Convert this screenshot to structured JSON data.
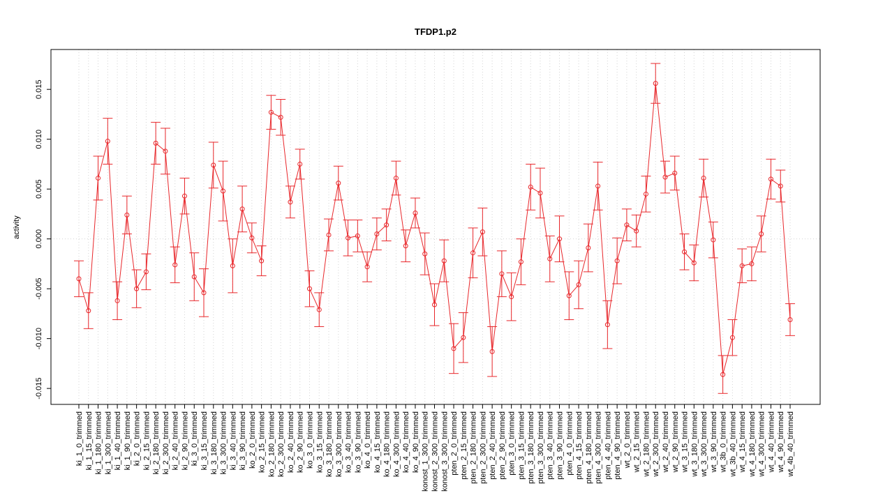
{
  "chart_data": {
    "type": "line",
    "title": "TFDP1.p2",
    "y_label": "activity",
    "categories": [
      "ki_1_0_trimmed",
      "ki_1_15_trimmed",
      "ki_1_180_trimmed",
      "ki_1_300_trimmed",
      "ki_1_40_trimmed",
      "ki_1_90_trimmed",
      "ki_2_0_trimmed",
      "ki_2_15_trimmed",
      "ki_2_180_trimmed",
      "ki_2_300_trimmed",
      "ki_2_40_trimmed",
      "ki_2_90_trimmed",
      "ki_3_0_trimmed",
      "ki_3_15_trimmed",
      "ki_3_180_trimmed",
      "ki_3_300_trimmed",
      "ki_3_40_trimmed",
      "ki_3_90_trimmed",
      "ko_2_0_trimmed",
      "ko_2_15_trimmed",
      "ko_2_180_trimmed",
      "ko_2_300_trimmed",
      "ko_2_40_trimmed",
      "ko_2_90_trimmed",
      "ko_3_0_trimmed",
      "ko_3_15_trimmed",
      "ko_3_180_trimmed",
      "ko_3_300_trimmed",
      "ko_3_40_trimmed",
      "ko_3_90_trimmed",
      "ko_4_0_trimmed",
      "ko_4_15_trimmed",
      "ko_4_180_trimmed",
      "ko_4_300_trimmed",
      "ko_4_40_trimmed",
      "ko_4_90_trimmed",
      "konost_1_300_trimmed",
      "konost_2_300_trimmed",
      "konost_3_300_trimmed",
      "pten_2_0_trimmed",
      "pten_2_15_trimmed",
      "pten_2_180_trimmed",
      "pten_2_300_trimmed",
      "pten_2_40_trimmed",
      "pten_2_90_trimmed",
      "pten_3_0_trimmed",
      "pten_3_15_trimmed",
      "pten_3_180_trimmed",
      "pten_3_300_trimmed",
      "pten_3_40_trimmed",
      "pten_3_90_trimmed",
      "pten_4_0_trimmed",
      "pten_4_15_trimmed",
      "pten_4_180_trimmed",
      "pten_4_300_trimmed",
      "pten_4_40_trimmed",
      "pten_4_90_trimmed",
      "wt_2_0_trimmed",
      "wt_2_15_trimmed",
      "wt_2_180_trimmed",
      "wt_2_300_trimmed",
      "wt_2_40_trimmed",
      "wt_2_90_trimmed",
      "wt_3_15_trimmed",
      "wt_3_180_trimmed",
      "wt_3_300_trimmed",
      "wt_3_90_trimmed",
      "wt_3b_0_trimmed",
      "wt_3b_40_trimmed",
      "wt_4_15_trimmed",
      "wt_4_180_trimmed",
      "wt_4_300_trimmed",
      "wt_4_40_trimmed",
      "wt_4_90_trimmed",
      "wt_4b_40_trimmed"
    ],
    "series": [
      {
        "color": "#e8262a",
        "values": [
          -0.004,
          -0.0072,
          0.0061,
          0.0098,
          -0.0062,
          0.0024,
          -0.005,
          -0.0033,
          0.0096,
          0.0088,
          -0.0026,
          0.0043,
          -0.0038,
          -0.0054,
          0.0074,
          0.0048,
          -0.0027,
          0.003,
          0.0001,
          -0.0022,
          0.0127,
          0.0122,
          0.0037,
          0.0075,
          -0.005,
          -0.0071,
          0.0004,
          0.0056,
          0.0001,
          0.0003,
          -0.0028,
          0.0005,
          0.0014,
          0.0061,
          -0.0007,
          0.0026,
          -0.0015,
          -0.0066,
          -0.0022,
          -0.011,
          -0.0099,
          -0.0014,
          0.0007,
          -0.0113,
          -0.0035,
          -0.0058,
          -0.0023,
          0.0052,
          0.0046,
          -0.002,
          0.0,
          -0.0057,
          -0.0046,
          -0.0009,
          0.0053,
          -0.0086,
          -0.0022,
          0.0014,
          0.0008,
          0.0045,
          0.0156,
          0.0062,
          0.0066,
          -0.0013,
          -0.0024,
          0.0061,
          -0.0001,
          -0.0136,
          -0.0099,
          -0.0027,
          -0.0025,
          0.0005,
          0.006,
          0.0053,
          -0.0081
        ],
        "errors": [
          0.0018,
          0.0018,
          0.0022,
          0.0023,
          0.0019,
          0.0019,
          0.0019,
          0.0018,
          0.0021,
          0.0023,
          0.0018,
          0.0018,
          0.0024,
          0.0024,
          0.0023,
          0.003,
          0.0027,
          0.0023,
          0.0015,
          0.0015,
          0.0017,
          0.0018,
          0.0016,
          0.0015,
          0.0018,
          0.0017,
          0.0016,
          0.0017,
          0.0018,
          0.0016,
          0.0015,
          0.0016,
          0.0016,
          0.0017,
          0.0016,
          0.0015,
          0.0021,
          0.0021,
          0.0021,
          0.0025,
          0.0025,
          0.0025,
          0.0024,
          0.0025,
          0.0023,
          0.0024,
          0.0023,
          0.0023,
          0.0025,
          0.0023,
          0.0023,
          0.0024,
          0.0024,
          0.0024,
          0.0024,
          0.0024,
          0.0023,
          0.0016,
          0.0016,
          0.0018,
          0.002,
          0.0016,
          0.0017,
          0.0018,
          0.0018,
          0.0019,
          0.0018,
          0.0019,
          0.0018,
          0.0017,
          0.0017,
          0.0018,
          0.002,
          0.0016,
          0.0016
        ]
      }
    ],
    "ylim": [
      -0.0166,
      0.019
    ],
    "yticks": [
      -0.015,
      {
        "value": -0.01,
        "label": "-0.010"
      },
      -0.005,
      {
        "value": 0,
        "label": "0.000"
      },
      0.005,
      {
        "value": 0.01,
        "label": "0.010"
      },
      0.015
    ],
    "grid": true
  }
}
